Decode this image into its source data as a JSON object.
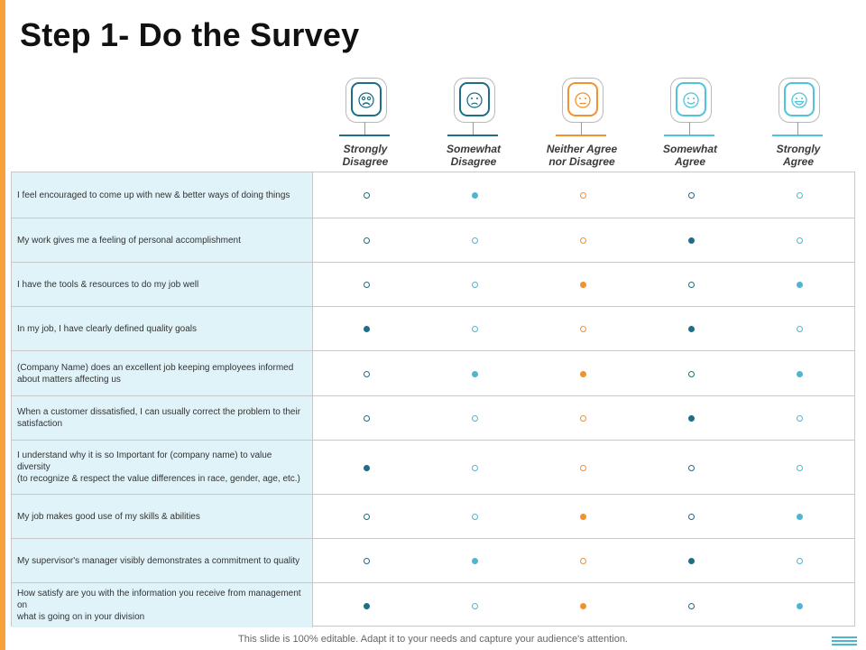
{
  "title": "Step 1- Do the Survey",
  "columns": [
    {
      "label": "Strongly\nDisagree",
      "icon": "very-sad-face-icon",
      "color": "#1d6e86"
    },
    {
      "label": "Somewhat\nDisagree",
      "icon": "sad-face-icon",
      "color": "#1d6e86"
    },
    {
      "label": "Neither Agree\nnor Disagree",
      "icon": "neutral-face-icon",
      "color": "#f0922e"
    },
    {
      "label": "Somewhat\nAgree",
      "icon": "smile-face-icon",
      "color": "#4fc3db"
    },
    {
      "label": "Strongly\nAgree",
      "icon": "laughing-face-icon",
      "color": "#4fc3db"
    }
  ],
  "dot_colors": [
    "#1d6e86",
    "#4fb6d2",
    "#f0922e",
    "#1d6e86",
    "#4fb6d2"
  ],
  "rows": [
    {
      "question": "I feel encouraged to come up with new & better ways of doing things",
      "filled": [
        false,
        true,
        false,
        false,
        false
      ]
    },
    {
      "question": "My work gives me a feeling of personal accomplishment",
      "filled": [
        false,
        false,
        false,
        true,
        false
      ]
    },
    {
      "question": "I have the tools & resources to do my job well",
      "filled": [
        false,
        false,
        true,
        false,
        true
      ]
    },
    {
      "question": "In my job, I have clearly defined quality goals",
      "filled": [
        true,
        false,
        false,
        true,
        false
      ]
    },
    {
      "question": "(Company Name) does an excellent job keeping employees informed about matters affecting us",
      "filled": [
        false,
        true,
        true,
        false,
        true
      ]
    },
    {
      "question": "When a customer dissatisfied, I can usually correct the problem to their satisfaction",
      "filled": [
        false,
        false,
        false,
        true,
        false
      ]
    },
    {
      "question": "I understand why it is so Important for (company name) to value diversity\n(to recognize & respect the value differences in race, gender, age, etc.)",
      "filled": [
        true,
        false,
        false,
        false,
        false
      ]
    },
    {
      "question": "My job makes good use of my skills & abilities",
      "filled": [
        false,
        false,
        true,
        false,
        true
      ]
    },
    {
      "question": "My supervisor's manager visibly demonstrates a commitment to quality",
      "filled": [
        false,
        true,
        false,
        true,
        false
      ]
    },
    {
      "question": "How satisfy are you with the information you receive from management on\nwhat is going on in your division",
      "filled": [
        true,
        false,
        true,
        false,
        true
      ]
    }
  ],
  "footer": "This slide is 100% editable. Adapt it to your needs and capture your audience's attention."
}
